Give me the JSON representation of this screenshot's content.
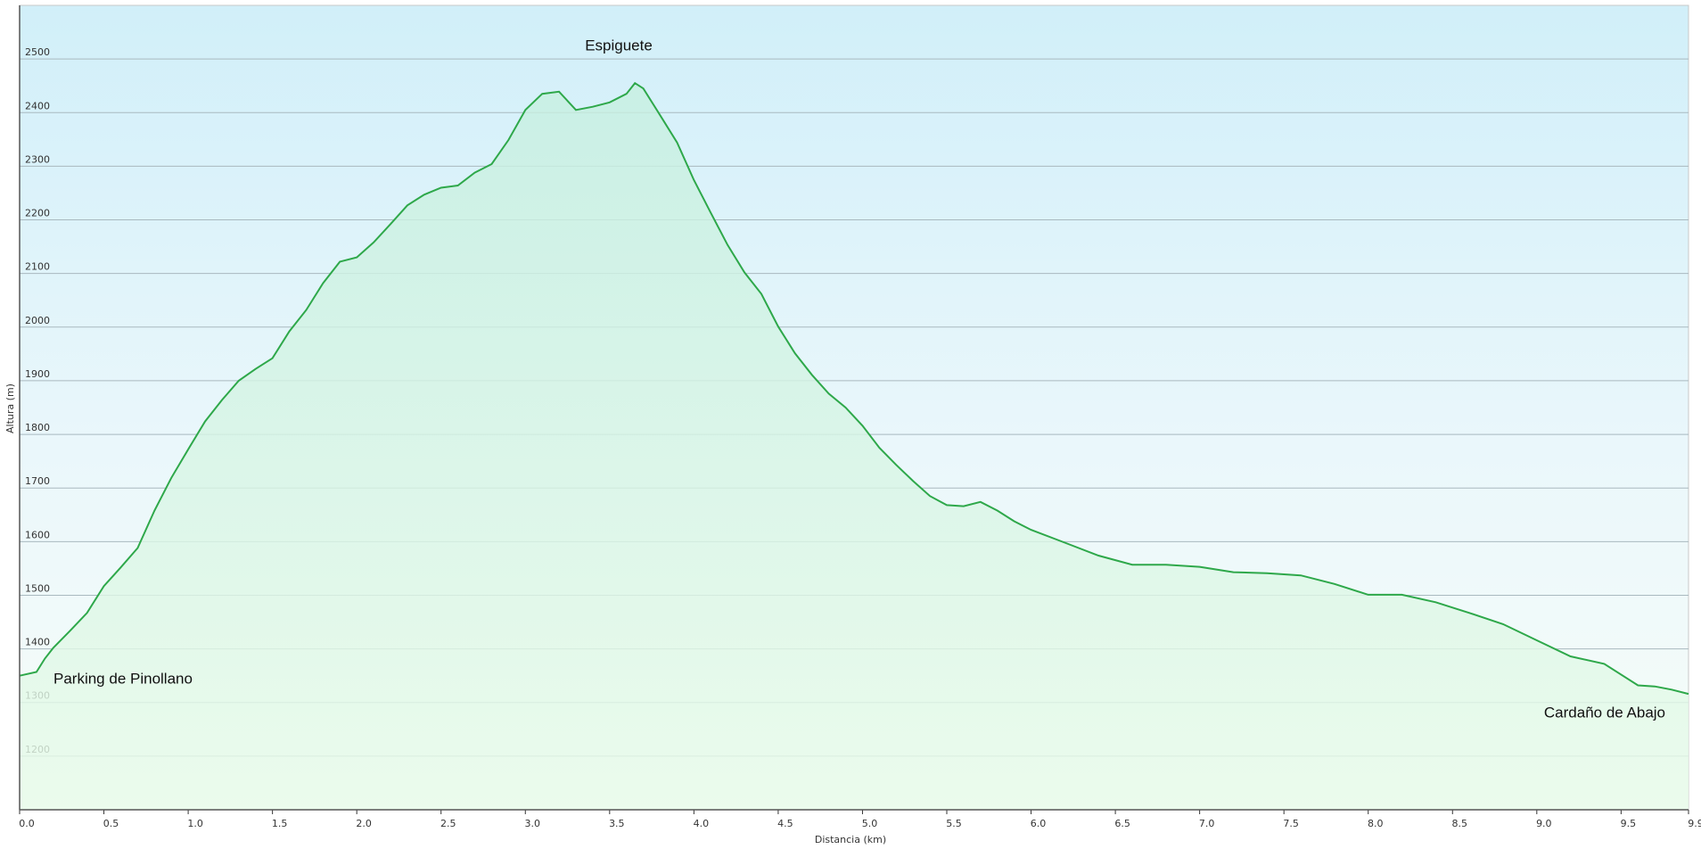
{
  "chart_data": {
    "type": "area",
    "xlabel": "Distancia  (km)",
    "ylabel": "Altura (m)",
    "annotations": [
      "Espiguete",
      "Parking de Pinollano",
      "Cardaño de Abajo"
    ],
    "color": "#2ea84a",
    "grid": true,
    "xlim": [
      0,
      9.9
    ],
    "ylim": [
      1100,
      2600
    ],
    "xticks": [
      {
        "value": 0,
        "label": "0.0"
      },
      0.5,
      {
        "value": 1,
        "label": "1.0"
      },
      1.5,
      {
        "value": 2,
        "label": "2.0"
      },
      2.5,
      {
        "value": 3,
        "label": "3.0"
      },
      3.5,
      {
        "value": 4,
        "label": "4.0"
      },
      4.5,
      {
        "value": 5,
        "label": "5.0"
      },
      5.5,
      {
        "value": 6,
        "label": "6.0"
      },
      6.5,
      {
        "value": 7,
        "label": "7.0"
      },
      7.5,
      {
        "value": 8,
        "label": "8.0"
      },
      8.5,
      {
        "value": 9,
        "label": "9.0"
      },
      9.5,
      9.9
    ],
    "yticks": [
      1200,
      1300,
      1400,
      1500,
      1600,
      1700,
      1800,
      1900,
      2000,
      2100,
      2200,
      2300,
      2400,
      2500
    ],
    "x": [
      0,
      0.1,
      0.15,
      0.2,
      0.3,
      0.4,
      0.5,
      0.6,
      0.7,
      0.8,
      0.9,
      1.0,
      1.1,
      1.2,
      1.3,
      1.4,
      1.5,
      1.6,
      1.7,
      1.8,
      1.9,
      2.0,
      2.1,
      2.2,
      2.3,
      2.4,
      2.5,
      2.6,
      2.7,
      2.8,
      2.9,
      3.0,
      3.1,
      3.2,
      3.3,
      3.4,
      3.5,
      3.6,
      3.65,
      3.7,
      3.8,
      3.9,
      4.0,
      4.1,
      4.2,
      4.3,
      4.4,
      4.5,
      4.6,
      4.7,
      4.8,
      4.9,
      5.0,
      5.1,
      5.2,
      5.3,
      5.4,
      5.5,
      5.6,
      5.7,
      5.8,
      5.9,
      6.0,
      6.2,
      6.4,
      6.6,
      6.8,
      7.0,
      7.2,
      7.4,
      7.6,
      7.8,
      8.0,
      8.2,
      8.4,
      8.6,
      8.8,
      9.0,
      9.2,
      9.4,
      9.6,
      9.7,
      9.8,
      9.9
    ],
    "values": [
      1350,
      1357,
      1382,
      1402,
      1434,
      1467,
      1517,
      1552,
      1588,
      1658,
      1719,
      1772,
      1824,
      1864,
      1900,
      1922,
      1942,
      1992,
      2032,
      2082,
      2122,
      2130,
      2158,
      2192,
      2227,
      2247,
      2260,
      2264,
      2288,
      2304,
      2349,
      2405,
      2435,
      2439,
      2405,
      2411,
      2419,
      2435,
      2455,
      2445,
      2395,
      2344,
      2274,
      2213,
      2153,
      2102,
      2062,
      2001,
      1951,
      1911,
      1876,
      1850,
      1816,
      1775,
      1743,
      1713,
      1685,
      1668,
      1666,
      1674,
      1658,
      1638,
      1622,
      1598,
      1574,
      1557,
      1557,
      1553,
      1543,
      1541,
      1537,
      1521,
      1501,
      1501,
      1487,
      1467,
      1446,
      1416,
      1386,
      1372,
      1332,
      1330,
      1324,
      1316
    ]
  }
}
